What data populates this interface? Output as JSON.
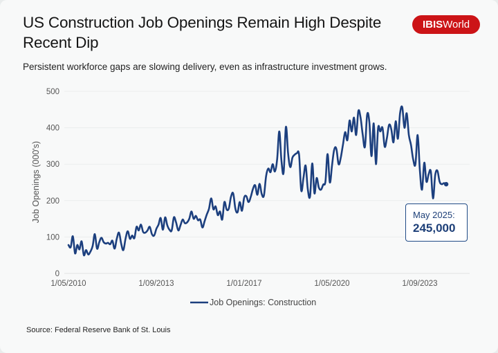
{
  "header": {
    "title": "US Construction Job Openings Remain High Despite Recent Dip",
    "subtitle": "Persistent workforce gaps are slowing delivery, even as infrastructure investment grows.",
    "logo_bold": "IBIS",
    "logo_regular": "World"
  },
  "footer": {
    "source": "Source: Federal Reserve Bank of St. Louis"
  },
  "callout": {
    "label": "May 2025:",
    "value": "245,000"
  },
  "colors": {
    "line": "#1c3f7e",
    "brand": "#cc1417",
    "grid": "#ebeded"
  },
  "chart_data": {
    "type": "line",
    "title": "US Construction Job Openings Remain High Despite Recent Dip",
    "xlabel": "",
    "ylabel": "Job Openings (000's)",
    "ylim": [
      0,
      500
    ],
    "yticks": [
      0,
      100,
      200,
      300,
      400,
      500
    ],
    "xtick_labels": [
      "1/05/2010",
      "1/09/2013",
      "1/01/2017",
      "1/05/2020",
      "1/09/2023"
    ],
    "xtick_month_index": [
      0,
      40,
      80,
      120,
      160
    ],
    "grid": true,
    "legend": {
      "position": "bottom-center",
      "entries": [
        "Job Openings: Construction"
      ]
    },
    "start": "2010-05",
    "frequency": "monthly",
    "series": [
      {
        "name": "Job Openings: Construction",
        "values": [
          78,
          72,
          102,
          55,
          78,
          66,
          88,
          50,
          64,
          52,
          60,
          75,
          108,
          68,
          85,
          98,
          86,
          82,
          84,
          80,
          90,
          68,
          95,
          112,
          82,
          64,
          96,
          116,
          95,
          104,
          97,
          128,
          118,
          134,
          114,
          112,
          118,
          128,
          108,
          104,
          122,
          134,
          152,
          120,
          154,
          132,
          120,
          118,
          154,
          140,
          118,
          132,
          148,
          138,
          140,
          150,
          170,
          150,
          158,
          146,
          148,
          126,
          144,
          162,
          178,
          206,
          176,
          184,
          160,
          170,
          148,
          196,
          176,
          178,
          210,
          220,
          178,
          168,
          196,
          172,
          208,
          212,
          196,
          210,
          232,
          242,
          216,
          246,
          218,
          214,
          268,
          288,
          278,
          300,
          280,
          312,
          390,
          308,
          278,
          402,
          330,
          292,
          318,
          326,
          330,
          326,
          228,
          262,
          296,
          230,
          212,
          302,
          220,
          262,
          236,
          230,
          244,
          252,
          328,
          250,
          296,
          340,
          342,
          300,
          318,
          354,
          388,
          366,
          420,
          390,
          428,
          380,
          446,
          428,
          380,
          348,
          436,
          416,
          322,
          412,
          300,
          400,
          390,
          400,
          348,
          372,
          408,
          396,
          360,
          418,
          370,
          440,
          456,
          400,
          440,
          380,
          352,
          312,
          300,
          380,
          284,
          230,
          304,
          252,
          272,
          280,
          206,
          270,
          282,
          252,
          245,
          248,
          245
        ]
      }
    ]
  }
}
